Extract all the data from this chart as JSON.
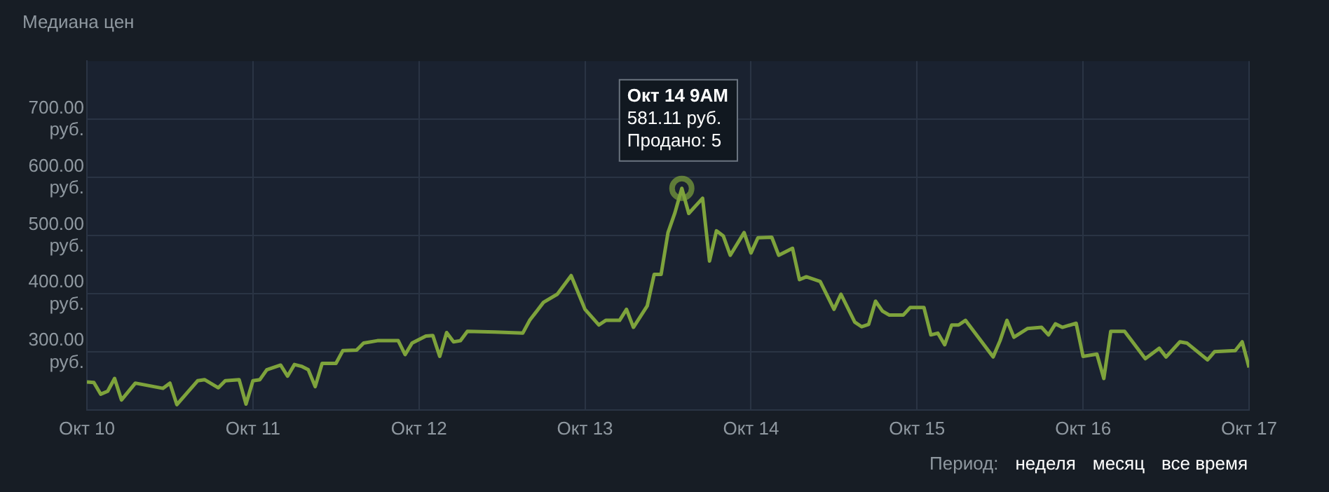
{
  "chart_data": {
    "type": "line",
    "title": "Медиана цен",
    "x": [
      "--10-10T00:00",
      "--10-10T01:00",
      "--10-10T02:00",
      "--10-10T03:00",
      "--10-10T04:00",
      "--10-10T05:00",
      "--10-10T07:00",
      "--10-10T11:00",
      "--10-10T12:00",
      "--10-10T13:00",
      "--10-10T16:00",
      "--10-10T17:00",
      "--10-10T19:00",
      "--10-10T20:00",
      "--10-10T22:00",
      "--10-10T23:00",
      "--10-11T00:00",
      "--10-11T01:00",
      "--10-11T02:00",
      "--10-11T04:00",
      "--10-11T05:00",
      "--10-11T06:00",
      "--10-11T07:00",
      "--10-11T08:00",
      "--10-11T09:00",
      "--10-11T10:00",
      "--10-11T12:00",
      "--10-11T13:00",
      "--10-11T15:00",
      "--10-11T16:00",
      "--10-11T18:00",
      "--10-11T21:00",
      "--10-11T22:00",
      "--10-11T23:00",
      "--10-12T01:00",
      "--10-12T02:00",
      "--10-12T03:00",
      "--10-12T04:00",
      "--10-12T05:00",
      "--10-12T06:00",
      "--10-12T07:00",
      "--10-12T11:00",
      "--10-12T15:00",
      "--10-12T16:00",
      "--10-12T18:00",
      "--10-12T20:00",
      "--10-12T22:00",
      "--10-13T00:00",
      "--10-13T02:00",
      "--10-13T03:00",
      "--10-13T05:00",
      "--10-13T06:00",
      "--10-13T07:00",
      "--10-13T09:00",
      "--10-13T10:00",
      "--10-13T11:00",
      "--10-13T12:00",
      "--10-13T13:00",
      "--10-13T14:00",
      "--10-13T15:00",
      "--10-13T17:00",
      "--10-13T18:00",
      "--10-13T19:00",
      "--10-13T20:00",
      "--10-13T21:00",
      "--10-13T23:00",
      "--10-14T00:00",
      "--10-14T01:00",
      "--10-14T03:00",
      "--10-14T04:00",
      "--10-14T06:00",
      "--10-14T07:00",
      "--10-14T08:00",
      "--10-14T10:00",
      "--10-14T12:00",
      "--10-14T13:00",
      "--10-14T15:00",
      "--10-14T16:00",
      "--10-14T17:00",
      "--10-14T18:00",
      "--10-14T19:00",
      "--10-14T20:00",
      "--10-14T22:00",
      "--10-14T23:00",
      "--10-15T01:00",
      "--10-15T02:00",
      "--10-15T03:00",
      "--10-15T04:00",
      "--10-15T05:00",
      "--10-15T06:00",
      "--10-15T07:00",
      "--10-15T11:00",
      "--10-15T12:00",
      "--10-15T13:00",
      "--10-15T14:00",
      "--10-15T16:00",
      "--10-15T18:00",
      "--10-15T19:00",
      "--10-15T20:00",
      "--10-15T21:00",
      "--10-15T23:00",
      "--10-16T00:00",
      "--10-16T02:00",
      "--10-16T03:00",
      "--10-16T04:00",
      "--10-16T06:00",
      "--10-16T09:00",
      "--10-16T11:00",
      "--10-16T12:00",
      "--10-16T14:00",
      "--10-16T15:00",
      "--10-16T18:00",
      "--10-16T19:00",
      "--10-16T22:00",
      "--10-16T23:00",
      "--10-17T00:00"
    ],
    "series": [
      {
        "color": "#7ea33c",
        "values": [
          248,
          247,
          227,
          232,
          254,
          217,
          246,
          237,
          246,
          209,
          250,
          252,
          238,
          250,
          252,
          210,
          250,
          252,
          269,
          277,
          258,
          278,
          275,
          269,
          240,
          280,
          280,
          302,
          303,
          315,
          319,
          319,
          295,
          315,
          327,
          328,
          292,
          333,
          317,
          319,
          335,
          334,
          332,
          354,
          385,
          399,
          431,
          373,
          346,
          354,
          354,
          373,
          342,
          379,
          433,
          433,
          505,
          539,
          581.11,
          538,
          564,
          456,
          508,
          499,
          466,
          505,
          470,
          496,
          497,
          466,
          478,
          424,
          429,
          421,
          373,
          399,
          351,
          343,
          347,
          387,
          370,
          363,
          363,
          376,
          376,
          329,
          332,
          312,
          346,
          346,
          354,
          291,
          319,
          354,
          325,
          340,
          342,
          329,
          348,
          342,
          349,
          292,
          296,
          254,
          335,
          335,
          288,
          306,
          291,
          317,
          315,
          286,
          300,
          302,
          317,
          273
        ]
      }
    ],
    "xlim": [
      "--10-10",
      "--10-17"
    ],
    "xticks": [
      {
        "value": "--10-10",
        "label": "Окт 10"
      },
      {
        "value": "--10-11",
        "label": "Окт 11"
      },
      {
        "value": "--10-12",
        "label": "Окт 12"
      },
      {
        "value": "--10-13",
        "label": "Окт 13"
      },
      {
        "value": "--10-14",
        "label": "Окт 14"
      },
      {
        "value": "--10-15",
        "label": "Окт 15"
      },
      {
        "value": "--10-16",
        "label": "Окт 16"
      },
      {
        "value": "--10-17",
        "label": "Окт 17"
      }
    ],
    "ylim": [
      200,
      800
    ],
    "yticks": [
      {
        "value": 300,
        "label": "300.00 руб."
      },
      {
        "value": 400,
        "label": "400.00 руб."
      },
      {
        "value": 500,
        "label": "500.00 руб."
      },
      {
        "value": 600,
        "label": "600.00 руб."
      },
      {
        "value": 700,
        "label": "700.00 руб."
      }
    ],
    "grid": true,
    "legend": false,
    "marker": "none",
    "line_style": "solid",
    "annotations": [
      {
        "text": "Окт 14 9AM\n581.11 руб.\nПродано: 5",
        "x": "--10-13T14:00",
        "y": 581.11
      },
      "Период:",
      "неделя",
      "месяц",
      "все время"
    ]
  }
}
